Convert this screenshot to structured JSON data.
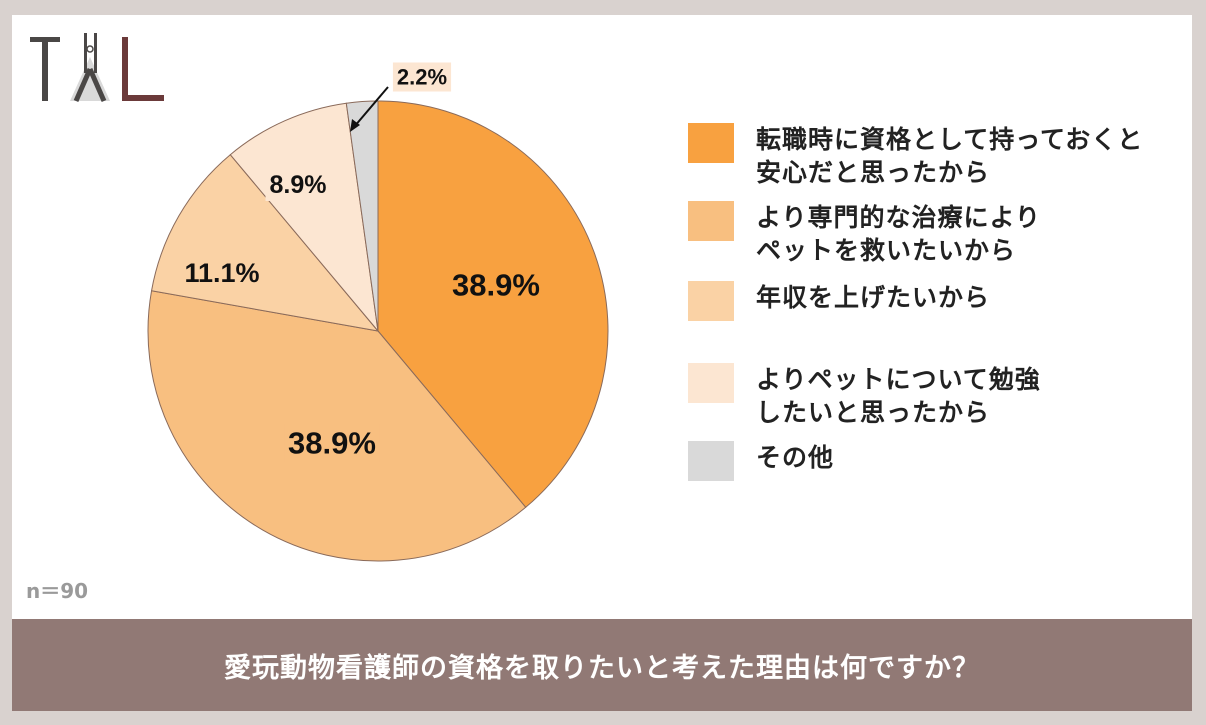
{
  "chart_data": {
    "type": "pie",
    "categories": [
      "転職時に資格として持っておくと\n安心だと思ったから",
      "より専門的な治療によりペットを救いたいから",
      "年収を上げたいから",
      "よりペットについて勉強したいと思ったから",
      "その他"
    ],
    "values": [
      38.9,
      38.9,
      11.1,
      8.9,
      2.2
    ],
    "value_labels": [
      "38.9%",
      "38.9%",
      "11.1%",
      "8.9%",
      "2.2%"
    ],
    "colors": [
      "#f8a140",
      "#f8bf80",
      "#fad2a5",
      "#fce6d2",
      "#d9d9d9"
    ],
    "legend_position": "right",
    "title": "愛玩動物看護師の資格を取りたいと考えた理由は何ですか？",
    "sample": "n＝90"
  },
  "legend": [
    "転職時に資格として持っておくと\n安心だと思ったから",
    "より専門的な治療により\nペットを救いたいから",
    "年収を上げたいから",
    "よりペットについて勉強\nしたいと思ったから",
    "その他"
  ],
  "logo_text": "TAL",
  "colors": {
    "footer": "#917975",
    "border": "#d9d2cf",
    "logo_dark": "#4a4746",
    "logo_red": "#6b3a3a"
  }
}
